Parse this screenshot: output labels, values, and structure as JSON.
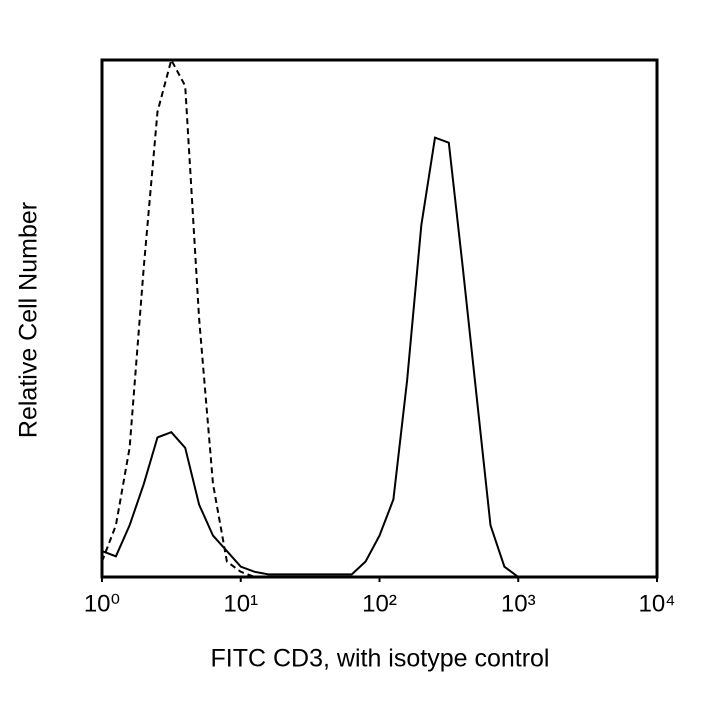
{
  "chart_data": {
    "type": "line",
    "x_label": "FITC CD3, with isotype control",
    "y_label": "Relative Cell Number",
    "x_log": true,
    "xlim": [
      1,
      10000
    ],
    "ylim": [
      0,
      100
    ],
    "xticks": [
      {
        "value": 1,
        "label": "10⁰"
      },
      {
        "value": 10,
        "label": "10¹"
      },
      {
        "value": 100,
        "label": "10²"
      },
      {
        "value": 1000,
        "label": "10³"
      },
      {
        "value": 10000,
        "label": "10⁴"
      }
    ],
    "x": [
      1,
      1.26,
      1.58,
      2,
      2.51,
      3.16,
      3.98,
      5.01,
      6.31,
      7.94,
      10,
      12.6,
      15.8,
      20,
      25.1,
      31.6,
      39.8,
      50.1,
      63.1,
      79.4,
      100,
      126,
      158,
      200,
      251,
      316,
      398,
      501,
      631,
      794,
      1000
    ],
    "series": [
      {
        "color": "#000000",
        "dashed": true,
        "values": [
          3,
          10,
          25,
          60,
          90,
          100,
          95,
          50,
          18,
          3,
          1,
          0,
          0,
          0,
          0,
          0,
          0,
          0,
          0,
          0,
          0,
          0,
          0,
          0,
          0,
          0,
          0,
          0,
          0,
          0,
          0
        ]
      },
      {
        "color": "#000000",
        "dashed": false,
        "values": [
          5,
          4,
          10,
          18,
          27,
          28,
          25,
          14,
          8,
          5,
          2,
          1,
          0.5,
          0.5,
          0.5,
          0.5,
          0.5,
          0.5,
          0.5,
          3,
          8,
          15,
          38,
          68,
          85,
          84,
          60,
          35,
          10,
          2,
          0
        ]
      }
    ]
  }
}
